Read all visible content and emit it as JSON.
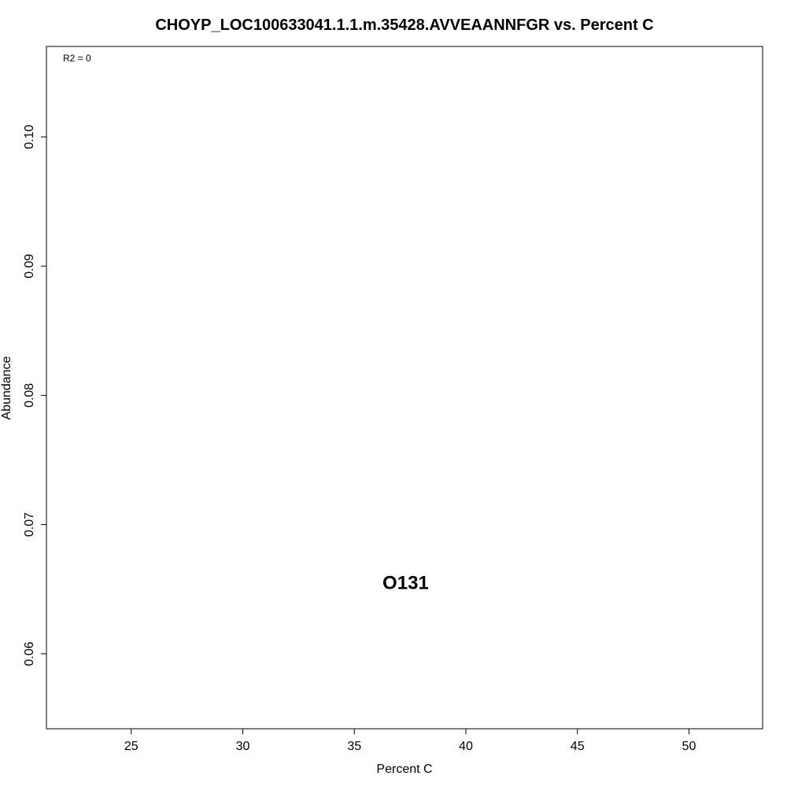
{
  "chart_data": {
    "type": "scatter",
    "title": "CHOYP_LOC100633041.1.1.m.35428.AVVEAANNFGR vs. Percent C",
    "xlabel": "Percent C",
    "ylabel": "Abundance",
    "xlim": [
      21.2,
      53.3
    ],
    "ylim": [
      0.0542,
      0.107
    ],
    "xticks": [
      25,
      30,
      35,
      40,
      45,
      50
    ],
    "yticks": [
      0.06,
      0.07,
      0.08,
      0.09,
      0.1
    ],
    "xtick_labels": [
      "25",
      "30",
      "35",
      "40",
      "45",
      "50"
    ],
    "ytick_labels": [
      "0.06",
      "0.07",
      "0.08",
      "0.09",
      "0.10"
    ],
    "annotation": "R2 = 0",
    "points": [
      {
        "label": "O131",
        "x": 37.3,
        "y": 0.0655
      }
    ]
  }
}
